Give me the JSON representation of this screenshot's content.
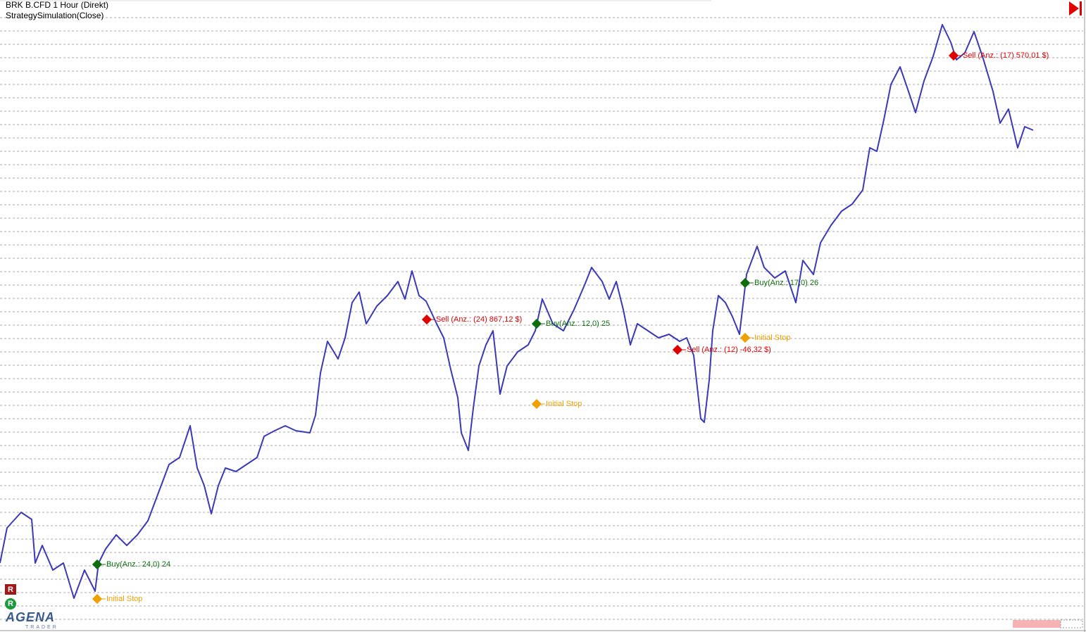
{
  "chart_data": {
    "type": "line",
    "title": "BRK B.CFD 1 Hour (Direkt)",
    "subtitle": "StrategySimulation(Close)",
    "x": [
      0,
      10,
      30,
      45,
      50,
      60,
      75,
      90,
      105,
      120,
      135,
      140,
      150,
      165,
      180,
      195,
      210,
      225,
      240,
      255,
      270,
      280,
      290,
      300,
      310,
      320,
      335,
      350,
      365,
      375,
      390,
      405,
      420,
      440,
      448,
      455,
      465,
      480,
      490,
      500,
      510,
      520,
      535,
      550,
      565,
      575,
      585,
      595,
      605,
      620,
      630,
      640,
      650,
      655,
      665,
      672,
      680,
      690,
      700,
      710,
      720,
      735,
      750,
      760,
      770,
      785,
      800,
      815,
      830,
      840,
      855,
      865,
      875,
      885,
      895,
      905,
      920,
      935,
      950,
      965,
      975,
      985,
      995,
      1000,
      1007,
      1012,
      1020,
      1030,
      1040,
      1050,
      1060,
      1075,
      1085,
      1100,
      1115,
      1130,
      1140,
      1155,
      1165,
      1180,
      1195,
      1210,
      1225,
      1235,
      1245,
      1255,
      1265,
      1278,
      1290,
      1300,
      1312,
      1325,
      1338,
      1350,
      1358,
      1370,
      1383,
      1395,
      1410,
      1420,
      1432,
      1445,
      1455,
      1467
    ],
    "series": [
      {
        "color": "#3a3ab8",
        "values": [
          80,
          130,
          152,
          142,
          80,
          105,
          70,
          80,
          30,
          70,
          40,
          80,
          100,
          120,
          105,
          120,
          140,
          180,
          220,
          230,
          275,
          215,
          190,
          150,
          190,
          215,
          210,
          220,
          230,
          260,
          268,
          275,
          268,
          265,
          290,
          350,
          395,
          370,
          400,
          450,
          465,
          420,
          445,
          460,
          480,
          455,
          495,
          460,
          452,
          420,
          400,
          355,
          315,
          265,
          240,
          300,
          360,
          390,
          410,
          320,
          360,
          380,
          390,
          410,
          455,
          420,
          410,
          440,
          475,
          500,
          480,
          455,
          480,
          440,
          390,
          420,
          410,
          400,
          405,
          395,
          400,
          375,
          285,
          280,
          340,
          410,
          460,
          450,
          430,
          405,
          490,
          530,
          500,
          485,
          495,
          450,
          510,
          490,
          535,
          560,
          580,
          590,
          610,
          670,
          665,
          710,
          760,
          785,
          750,
          720,
          765,
          800,
          845,
          820,
          795,
          805,
          835,
          800,
          750,
          705,
          725,
          670,
          700,
          695
        ]
      }
    ],
    "markers": [
      {
        "x": 138,
        "y": 78,
        "color": "#0b6e0b",
        "label": "Buy(Anz.: 24,0)  24"
      },
      {
        "x": 138,
        "y": 29,
        "color": "#f0a000",
        "label": "Initial Stop"
      },
      {
        "x": 606,
        "y": 426,
        "color": "#e00000",
        "label": "Sell (Anz.: (24)  867,12 $)"
      },
      {
        "x": 762,
        "y": 420,
        "color": "#0b6e0b",
        "label": "Buy(Anz.: 12,0)  25"
      },
      {
        "x": 762,
        "y": 306,
        "color": "#f0a000",
        "label": "Initial Stop"
      },
      {
        "x": 962,
        "y": 383,
        "color": "#e00000",
        "label": "Sell (Anz.: (12)  -46,32 $)"
      },
      {
        "x": 1058,
        "y": 400,
        "color": "#f0a000",
        "label": "Initial Stop"
      },
      {
        "x": 1058,
        "y": 478,
        "color": "#0b6e0b",
        "label": "Buy(Anz.: 17,0)  26"
      },
      {
        "x": 1354,
        "y": 801,
        "color": "#e00000",
        "label": "Sell (Anz.: (17)  570,01 $)"
      }
    ],
    "xlim": [
      0,
      1542
    ],
    "ylim": [
      0,
      880
    ],
    "yticks": [
      0,
      19,
      38,
      57,
      76,
      95,
      114,
      133,
      152,
      171,
      190,
      209,
      228,
      247,
      266,
      285,
      304,
      323,
      342,
      361,
      380,
      399,
      418,
      437,
      456,
      475,
      494,
      513,
      532,
      551,
      570,
      589,
      608,
      627,
      646,
      665,
      684,
      703,
      722,
      741,
      760,
      779,
      798,
      817,
      836,
      855
    ],
    "grid": true
  },
  "ui": {
    "badge_red": "R",
    "badge_green": "R",
    "logo": "AGENA",
    "logo_sub": "TRADER"
  }
}
